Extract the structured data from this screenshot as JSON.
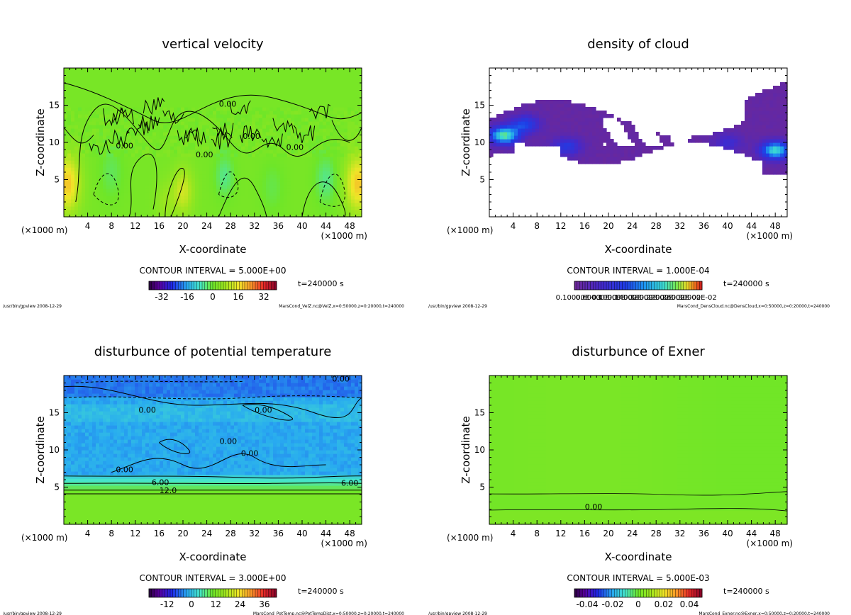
{
  "page": {
    "background": "#ffffff"
  },
  "chart_data": [
    {
      "type": "heatmap",
      "title": "vertical velocity",
      "xlabel": "X-coordinate",
      "ylabel": "Z-coordinate",
      "xunit": "(×1000 m)",
      "xunit_right": "(×1000 m)",
      "xlim": [
        0,
        50
      ],
      "ylim": [
        0,
        20
      ],
      "xticks": [
        4,
        8,
        12,
        16,
        20,
        24,
        28,
        32,
        36,
        40,
        44,
        48
      ],
      "yticks": [
        5,
        10,
        15
      ],
      "contour_interval": "CONTOUR INTERVAL = 5.000E+00",
      "time": "t=240000 s",
      "colorbar_ticks": [
        "-32",
        "-16",
        "0",
        "16",
        "32"
      ],
      "colorbar_range": [
        -40,
        40
      ],
      "colorbar_tick_values": [
        -32,
        -16,
        0,
        16,
        32
      ],
      "colormap": "rainbow",
      "footer_left": "/usr/bin/gpview   2008-12-29",
      "footer_right": "MarsCond_VelZ.nc@VelZ,x=0:50000,z=0:20000,t=240000",
      "contour_labels": [
        {
          "text": "0.00",
          "x": 27.5,
          "y": 14.8
        },
        {
          "text": "0.00",
          "x": 10.2,
          "y": 9.2
        },
        {
          "text": "0.00",
          "x": 31.5,
          "y": 10.5
        },
        {
          "text": "0.00",
          "x": 38.8,
          "y": 9.0
        },
        {
          "text": "0.00",
          "x": 23.6,
          "y": 8.0
        }
      ],
      "field_type": "velocity"
    },
    {
      "type": "heatmap",
      "title": "density of cloud",
      "xlabel": "X-coordinate",
      "ylabel": "Z-coordinate",
      "xunit": "(×1000 m)",
      "xunit_right": "(×1000 m)",
      "xlim": [
        0,
        50
      ],
      "ylim": [
        0,
        20
      ],
      "xticks": [
        4,
        8,
        12,
        16,
        20,
        24,
        28,
        32,
        36,
        40,
        44,
        48
      ],
      "yticks": [
        5,
        10,
        15
      ],
      "contour_interval": "CONTOUR INTERVAL = 1.000E-04",
      "time": "t=240000 s",
      "colorbar_ticks": [
        "0.10000E-03",
        "0.60000E-03",
        "0.10000E-02",
        "0.14000E-02",
        "0.18000E-02",
        "0.22000E-02",
        "0.26000E-02",
        "0.30000E-02"
      ],
      "colorbar_tick_values": [
        0.0001,
        0.0006,
        0.001,
        0.0014,
        0.0018,
        0.0022,
        0.0026,
        0.003
      ],
      "colorbar_range": [
        0,
        0.0032
      ],
      "colormap": "cloud",
      "footer_left": "/usr/bin/gpview   2008-12-29",
      "footer_right": "MarsCond_DensCloud.nc@DensCloud,x=0:50000,z=0:20000,t=240000",
      "contour_labels": [],
      "field_type": "cloud"
    },
    {
      "type": "heatmap",
      "title": "disturbunce of potential temperature",
      "xlabel": "X-coordinate",
      "ylabel": "Z-coordinate",
      "xunit": "(×1000 m)",
      "xunit_right": "(×1000 m)",
      "xlim": [
        0,
        50
      ],
      "ylim": [
        0,
        20
      ],
      "xticks": [
        4,
        8,
        12,
        16,
        20,
        24,
        28,
        32,
        36,
        40,
        44,
        48
      ],
      "yticks": [
        5,
        10,
        15
      ],
      "contour_interval": "CONTOUR INTERVAL = 3.000E+00",
      "time": "t=240000 s",
      "colorbar_ticks": [
        "-12",
        "0",
        "12",
        "24",
        "36"
      ],
      "colorbar_tick_values": [
        -12,
        0,
        12,
        24,
        36
      ],
      "colorbar_range": [
        -21,
        42
      ],
      "colormap": "rainbow",
      "footer_left": "/usr/bin/gpview   2008-12-29",
      "footer_right": "MarsCond_PotTemp.nc@PotTempDist,x=0:50000,z=0:20000,t=240000",
      "contour_labels": [
        {
          "text": "0.00",
          "x": 46.5,
          "y": 19.2
        },
        {
          "text": "0.00",
          "x": 14.0,
          "y": 15.0
        },
        {
          "text": "0.00",
          "x": 33.5,
          "y": 15.0
        },
        {
          "text": "0.00",
          "x": 27.6,
          "y": 10.8
        },
        {
          "text": "0.00",
          "x": 31.2,
          "y": 9.2
        },
        {
          "text": "0.00",
          "x": 10.2,
          "y": 7.0
        },
        {
          "text": "6.00",
          "x": 16.2,
          "y": 5.3
        },
        {
          "text": "6.00",
          "x": 48.0,
          "y": 5.2
        },
        {
          "text": "12.0",
          "x": 17.5,
          "y": 4.2
        }
      ],
      "field_type": "temperature"
    },
    {
      "type": "heatmap",
      "title": "disturbunce of Exner",
      "xlabel": "X-coordinate",
      "ylabel": "Z-coordinate",
      "xunit": "(×1000 m)",
      "xunit_right": "(×1000 m)",
      "xlim": [
        0,
        50
      ],
      "ylim": [
        0,
        20
      ],
      "xticks": [
        4,
        8,
        12,
        16,
        20,
        24,
        28,
        32,
        36,
        40,
        44,
        48
      ],
      "yticks": [
        5,
        10,
        15
      ],
      "contour_interval": "CONTOUR INTERVAL = 5.000E-03",
      "time": "t=240000 s",
      "colorbar_ticks": [
        "-0.04",
        "-0.02",
        "0",
        "0.02",
        "0.04"
      ],
      "colorbar_tick_values": [
        -0.04,
        -0.02,
        0,
        0.02,
        0.04
      ],
      "colorbar_range": [
        -0.05,
        0.05
      ],
      "colormap": "rainbow",
      "footer_left": "/usr/bin/gpview   2008-12-29",
      "footer_right": "MarsCond_Exner.nc@Exner,x=0:50000,z=0:20000,t=240000",
      "contour_labels": [
        {
          "text": "0.00",
          "x": 17.5,
          "y": 2.0
        }
      ],
      "field_type": "exner"
    }
  ]
}
